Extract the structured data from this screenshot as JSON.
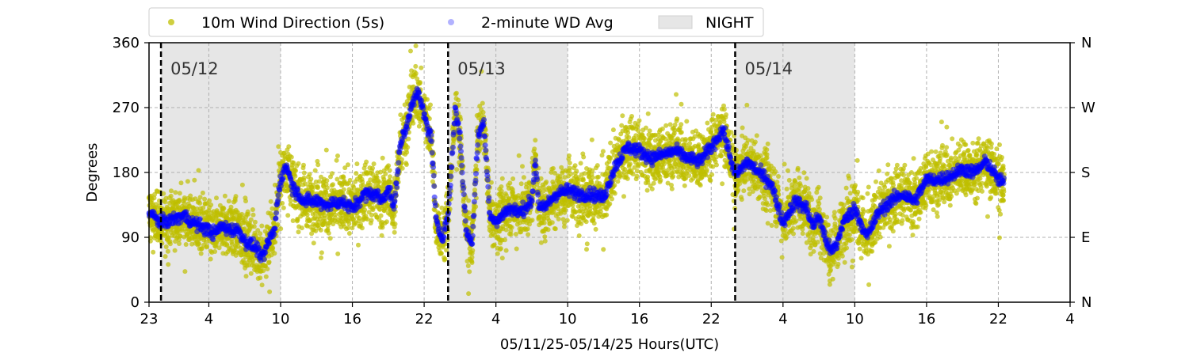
{
  "chart_data": {
    "type": "scatter",
    "title": "",
    "xlabel": "05/11/25-05/14/25  Hours(UTC)",
    "ylabel": "Degrees",
    "x_units": "hours since 05/11 00:00 UTC",
    "xlim": [
      23,
      100
    ],
    "ylim": [
      0,
      360
    ],
    "x_ticks": [
      23,
      28,
      34,
      40,
      46,
      52,
      58,
      64,
      70,
      76,
      82,
      88,
      94,
      100
    ],
    "x_tick_labels": [
      "23",
      "4",
      "10",
      "16",
      "22",
      "4",
      "10",
      "16",
      "22",
      "4",
      "10",
      "16",
      "22",
      "4"
    ],
    "y_ticks": [
      0,
      90,
      180,
      270,
      360
    ],
    "y_tick_labels": [
      "0",
      "90",
      "180",
      "270",
      "360"
    ],
    "right_ticks": [
      0,
      90,
      180,
      270,
      360
    ],
    "right_tick_labels": [
      "N",
      "E",
      "S",
      "W",
      "N"
    ],
    "grid": true,
    "legend_position": "top",
    "legend": [
      {
        "label": "10m Wind Direction (5s)",
        "marker": "dot",
        "color": "#bfbf00"
      },
      {
        "label": "2-minute WD Avg",
        "marker": "dot",
        "color": "#0000ff"
      },
      {
        "label": "NIGHT",
        "marker": "patch",
        "color": "#e6e6e6"
      }
    ],
    "night_spans": [
      [
        24,
        34
      ],
      [
        48,
        58
      ],
      [
        72,
        82
      ]
    ],
    "day_markers": [
      {
        "x": 24,
        "label": "05/12"
      },
      {
        "x": 48,
        "label": "05/13"
      },
      {
        "x": 72,
        "label": "05/14"
      }
    ],
    "series": [
      {
        "name": "2-minute WD Avg",
        "color": "#0000ff",
        "points": [
          [
            23.0,
            125
          ],
          [
            24.0,
            110
          ],
          [
            25.0,
            115
          ],
          [
            26.0,
            120
          ],
          [
            26.5,
            112
          ],
          [
            27.0,
            108
          ],
          [
            28.0,
            100
          ],
          [
            28.5,
            95
          ],
          [
            29.0,
            105
          ],
          [
            30.0,
            100
          ],
          [
            30.5,
            100
          ],
          [
            31.0,
            85
          ],
          [
            31.5,
            80
          ],
          [
            32.0,
            75
          ],
          [
            32.5,
            60
          ],
          [
            33.0,
            85
          ],
          [
            33.5,
            100
          ],
          [
            33.8,
            150
          ],
          [
            34.0,
            170
          ],
          [
            34.5,
            190
          ],
          [
            35.0,
            160
          ],
          [
            35.5,
            150
          ],
          [
            36.0,
            140
          ],
          [
            37.0,
            140
          ],
          [
            38.0,
            135
          ],
          [
            39.0,
            140
          ],
          [
            40.0,
            130
          ],
          [
            41.0,
            150
          ],
          [
            42.0,
            150
          ],
          [
            42.5,
            140
          ],
          [
            43.0,
            160
          ],
          [
            43.5,
            130
          ],
          [
            44.0,
            220
          ],
          [
            44.5,
            240
          ],
          [
            45.0,
            280
          ],
          [
            45.5,
            290
          ],
          [
            46.0,
            260
          ],
          [
            46.3,
            240
          ],
          [
            46.6,
            230
          ],
          [
            47.0,
            110
          ],
          [
            47.5,
            90
          ],
          [
            48.0,
            120
          ],
          [
            48.3,
            190
          ],
          [
            48.6,
            270
          ],
          [
            49.0,
            230
          ],
          [
            49.5,
            100
          ],
          [
            50.0,
            80
          ],
          [
            50.5,
            230
          ],
          [
            51.0,
            250
          ],
          [
            51.5,
            120
          ],
          [
            52.0,
            110
          ],
          [
            53.0,
            130
          ],
          [
            54.0,
            125
          ],
          [
            55.0,
            140
          ],
          [
            55.3,
            200
          ],
          [
            55.6,
            130
          ],
          [
            56.0,
            130
          ],
          [
            57.0,
            150
          ],
          [
            58.0,
            155
          ],
          [
            59.0,
            150
          ],
          [
            60.0,
            150
          ],
          [
            61.0,
            145
          ],
          [
            62.0,
            190
          ],
          [
            63.0,
            215
          ],
          [
            64.0,
            210
          ],
          [
            65.0,
            200
          ],
          [
            66.0,
            205
          ],
          [
            67.0,
            210
          ],
          [
            68.0,
            200
          ],
          [
            69.0,
            195
          ],
          [
            70.0,
            215
          ],
          [
            71.0,
            240
          ],
          [
            72.0,
            175
          ],
          [
            73.0,
            195
          ],
          [
            74.0,
            180
          ],
          [
            75.0,
            165
          ],
          [
            76.0,
            110
          ],
          [
            77.0,
            140
          ],
          [
            78.0,
            130
          ],
          [
            78.5,
            105
          ],
          [
            79.0,
            120
          ],
          [
            79.5,
            90
          ],
          [
            80.0,
            70
          ],
          [
            80.5,
            80
          ],
          [
            81.0,
            110
          ],
          [
            81.5,
            120
          ],
          [
            82.0,
            130
          ],
          [
            82.5,
            110
          ],
          [
            83.0,
            90
          ],
          [
            84.0,
            125
          ],
          [
            85.0,
            140
          ],
          [
            86.0,
            150
          ],
          [
            87.0,
            140
          ],
          [
            88.0,
            170
          ],
          [
            89.0,
            170
          ],
          [
            90.0,
            175
          ],
          [
            91.0,
            185
          ],
          [
            92.0,
            180
          ],
          [
            93.0,
            195
          ],
          [
            94.0,
            170
          ],
          [
            94.5,
            165
          ]
        ]
      }
    ],
    "annotations": [
      "05/12",
      "05/13",
      "05/14"
    ]
  }
}
